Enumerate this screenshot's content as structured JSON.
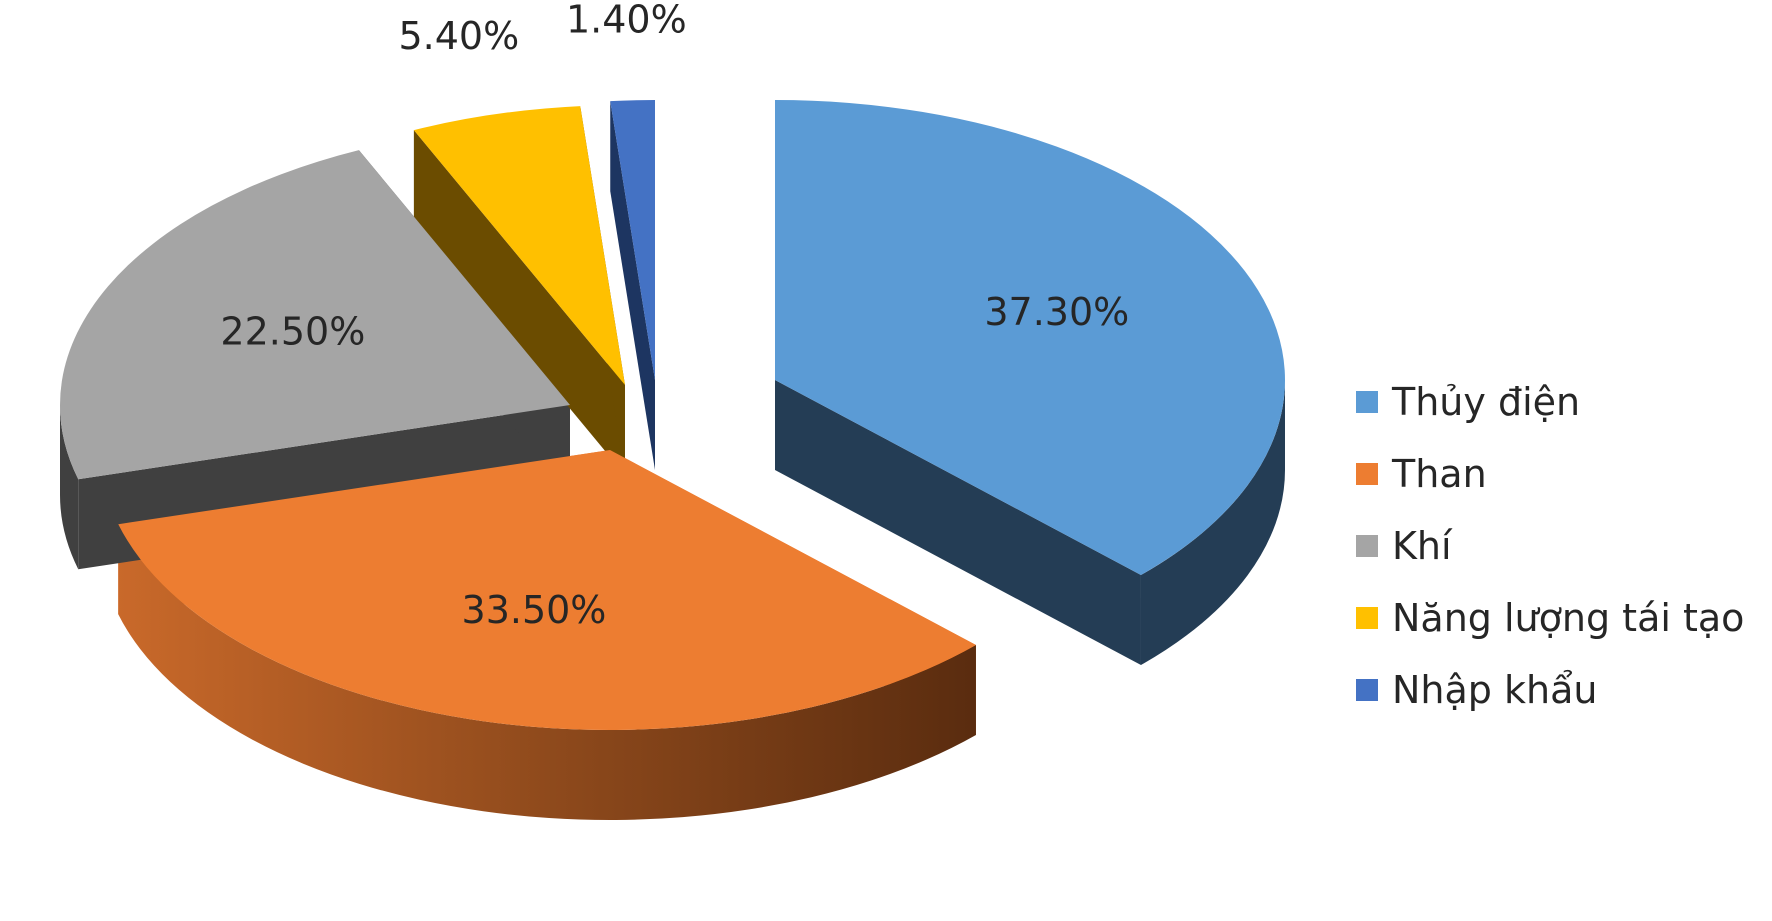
{
  "chart_data": {
    "type": "pie",
    "title": "",
    "style": "3d-exploded",
    "legend_position": "right",
    "slices": [
      {
        "label": "Thủy điện",
        "value": 37.3,
        "display": "37.30%",
        "color": "#5B9BD5"
      },
      {
        "label": "Than",
        "value": 33.5,
        "display": "33.50%",
        "color": "#ED7D31"
      },
      {
        "label": "Khí",
        "value": 22.5,
        "display": "22.50%",
        "color": "#A5A5A5"
      },
      {
        "label": "Năng lượng tái tạo",
        "value": 5.4,
        "display": "5.40%",
        "color": "#FFC000"
      },
      {
        "label": "Nhập khẩu",
        "value": 1.4,
        "display": "1.40%",
        "color": "#4472C4"
      }
    ]
  }
}
